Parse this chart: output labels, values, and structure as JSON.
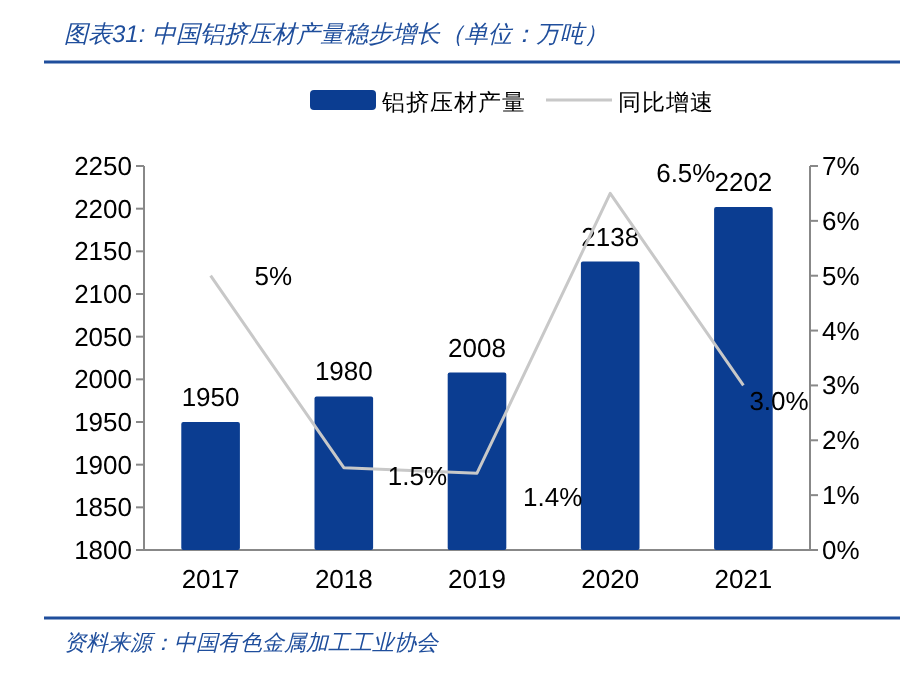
{
  "chart_data": {
    "type": "bar",
    "title": "图表31: 中国铝挤压材产量稳步增长（单位：万吨）",
    "categories": [
      "2017",
      "2018",
      "2019",
      "2020",
      "2021"
    ],
    "series": [
      {
        "name": "铝挤压材产量",
        "color": "#0b3d91",
        "values": [
          1950,
          1980,
          2008,
          2138,
          2202
        ],
        "data_labels": true
      },
      {
        "name": "同比增速",
        "type": "line",
        "color": "#c8c8c8",
        "axis": "y2",
        "values": [
          5,
          1.5,
          1.4,
          6.5,
          3.0
        ],
        "value_labels": [
          "5%",
          "1.5%",
          "1.4%",
          "6.5%",
          "3.0%"
        ]
      }
    ],
    "ylim": [
      1800,
      2250
    ],
    "yticks": [
      1800,
      1850,
      1900,
      1950,
      2000,
      2050,
      2100,
      2150,
      2200,
      2250
    ],
    "y2lim": [
      0,
      7
    ],
    "y2ticks": [
      {
        "value": 0,
        "label": "0%"
      },
      {
        "value": 1,
        "label": "1%"
      },
      {
        "value": 2,
        "label": "2%"
      },
      {
        "value": 3,
        "label": "3%"
      },
      {
        "value": 4,
        "label": "4%"
      },
      {
        "value": 5,
        "label": "5%"
      },
      {
        "value": 6,
        "label": "6%"
      },
      {
        "value": 7,
        "label": "7%"
      }
    ],
    "legend": "top",
    "grid": false,
    "annotations": [
      "资料来源：中国有色金属加工工业协会"
    ]
  }
}
